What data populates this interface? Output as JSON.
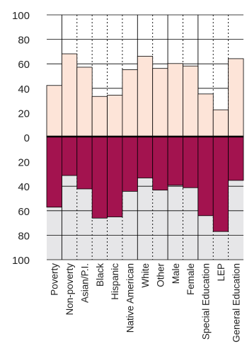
{
  "chart_data": {
    "type": "bar",
    "categories": [
      "Poverty",
      "Non-poverty",
      "Asian/P.I.",
      "Black",
      "Hispanic",
      "Native American",
      "White",
      "Other",
      "Male",
      "Female",
      "Special Education",
      "LEP",
      "General Education"
    ],
    "series": [
      {
        "values": [
          42,
          68,
          57,
          33,
          34,
          55,
          66,
          56,
          60,
          58,
          35,
          22,
          64
        ]
      },
      {
        "values": [
          58,
          32,
          43,
          67,
          66,
          45,
          34,
          44,
          40,
          42,
          65,
          78,
          36
        ]
      }
    ],
    "ytick_labels": [
      "100",
      "80",
      "60",
      "40",
      "20",
      "0",
      "20",
      "40",
      "60",
      "80",
      "100"
    ],
    "ylim": [
      -100,
      100
    ],
    "grid": true,
    "group_dividers_after": [
      1,
      6,
      8,
      10
    ],
    "colors": {
      "upper_bar": "#fde4d8",
      "lower_bar": "#a3134f",
      "lower_background": "#e6e6e8",
      "axis": "#000000",
      "grid": "#000000"
    }
  }
}
